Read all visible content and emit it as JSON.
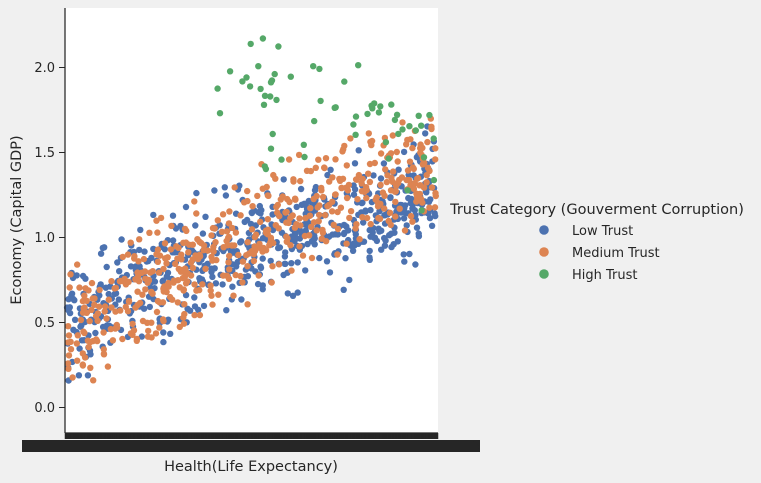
{
  "chart_data": {
    "type": "scatter",
    "subtype": "categorical strip plot (x axis has one category per distinct health value; tick labels overlap into a solid band)",
    "title": "",
    "xlabel": "Health(Life Expectancy)",
    "ylabel": "Economy (Capital GDP)",
    "ylim": [
      -0.15,
      2.35
    ],
    "yticks": [
      0.0,
      0.5,
      1.0,
      1.5,
      2.0
    ],
    "ytick_labels": [
      "0.0",
      "0.5",
      "1.0",
      "1.5",
      "2.0"
    ],
    "x_category_count": 780,
    "x_tick_labels_visible_edges": [
      "0",
      "3"
    ],
    "grid": false,
    "legend_title": "Trust Category (Gouverment Corruption)",
    "legend_placement": "right",
    "series": [
      {
        "name": "Low Trust",
        "color": "#4c72b0",
        "approx_points": 620,
        "trend": [
          [
            0.0,
            0.5
          ],
          [
            0.25,
            0.75
          ],
          [
            0.5,
            0.95
          ],
          [
            0.75,
            1.1
          ],
          [
            1.0,
            1.3
          ]
        ]
      },
      {
        "name": "Medium Trust",
        "color": "#dd8452",
        "approx_points": 520,
        "trend": [
          [
            0.0,
            0.4
          ],
          [
            0.25,
            0.75
          ],
          [
            0.5,
            1.0
          ],
          [
            0.75,
            1.3
          ],
          [
            1.0,
            1.4
          ]
        ]
      },
      {
        "name": "High Trust",
        "color": "#55a868",
        "approx_points": 60,
        "trend": [
          [
            0.4,
            1.9
          ],
          [
            0.6,
            1.8
          ],
          [
            0.8,
            1.7
          ],
          [
            1.0,
            1.5
          ]
        ]
      }
    ]
  }
}
